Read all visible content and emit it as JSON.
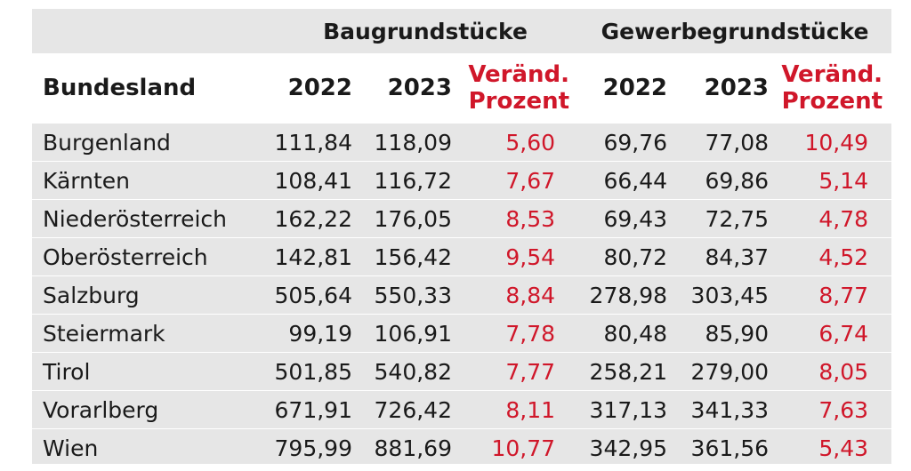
{
  "groups": {
    "bau": "Baugrundstücke",
    "gewerbe": "Gewerbegrundstücke"
  },
  "columns": {
    "bundesland": "Bundesland",
    "bau_2022": "2022",
    "bau_2023": "2023",
    "bau_change_line1": "Veränd.",
    "bau_change_line2": "Prozent",
    "gew_2022": "2022",
    "gew_2023": "2023",
    "gew_change_line1": "Veränd.",
    "gew_change_line2": "Prozent"
  },
  "rows": [
    {
      "name": "Burgenland",
      "bau_2022": "111,84",
      "bau_2023": "118,09",
      "bau_pct": "5,60",
      "gew_2022": "69,76",
      "gew_2023": "77,08",
      "gew_pct": "10,49"
    },
    {
      "name": "Kärnten",
      "bau_2022": "108,41",
      "bau_2023": "116,72",
      "bau_pct": "7,67",
      "gew_2022": "66,44",
      "gew_2023": "69,86",
      "gew_pct": "5,14"
    },
    {
      "name": "Niederösterreich",
      "bau_2022": "162,22",
      "bau_2023": "176,05",
      "bau_pct": "8,53",
      "gew_2022": "69,43",
      "gew_2023": "72,75",
      "gew_pct": "4,78"
    },
    {
      "name": "Oberösterreich",
      "bau_2022": "142,81",
      "bau_2023": "156,42",
      "bau_pct": "9,54",
      "gew_2022": "80,72",
      "gew_2023": "84,37",
      "gew_pct": "4,52"
    },
    {
      "name": "Salzburg",
      "bau_2022": "505,64",
      "bau_2023": "550,33",
      "bau_pct": "8,84",
      "gew_2022": "278,98",
      "gew_2023": "303,45",
      "gew_pct": "8,77"
    },
    {
      "name": "Steiermark",
      "bau_2022": "99,19",
      "bau_2023": "106,91",
      "bau_pct": "7,78",
      "gew_2022": "80,48",
      "gew_2023": "85,90",
      "gew_pct": "6,74"
    },
    {
      "name": "Tirol",
      "bau_2022": "501,85",
      "bau_2023": "540,82",
      "bau_pct": "7,77",
      "gew_2022": "258,21",
      "gew_2023": "279,00",
      "gew_pct": "8,05"
    },
    {
      "name": "Vorarlberg",
      "bau_2022": "671,91",
      "bau_2023": "726,42",
      "bau_pct": "8,11",
      "gew_2022": "317,13",
      "gew_2023": "341,33",
      "gew_pct": "7,63"
    },
    {
      "name": "Wien",
      "bau_2022": "795,99",
      "bau_2023": "881,69",
      "bau_pct": "10,77",
      "gew_2022": "342,95",
      "gew_2023": "361,56",
      "gew_pct": "5,43"
    }
  ],
  "colors": {
    "background": "#e6e6e6",
    "header_background": "#ffffff",
    "accent_red": "#d0172a",
    "text": "#1a1a1a"
  }
}
